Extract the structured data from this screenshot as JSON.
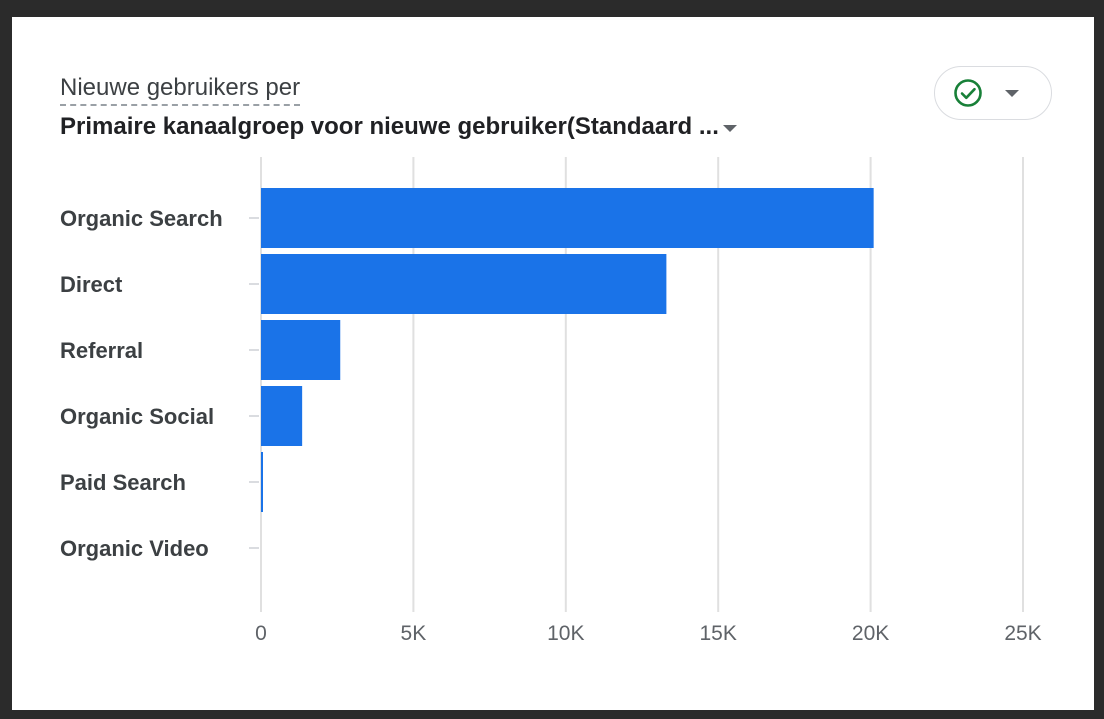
{
  "header": {
    "title_line1": "Nieuwe gebruikers per",
    "title_line2": "Primaire kanaalgroep voor nieuwe gebruiker(Standaard ..."
  },
  "status_button": {
    "icon": "check-circle-icon",
    "dropdown_icon": "chevron-down-icon",
    "icon_color": "#188038"
  },
  "chart_data": {
    "type": "bar",
    "orientation": "horizontal",
    "categories": [
      "Organic Search",
      "Direct",
      "Referral",
      "Organic Social",
      "Paid Search",
      "Organic Video"
    ],
    "values": [
      20100,
      13300,
      2600,
      1350,
      60,
      0
    ],
    "xlim": [
      0,
      25000
    ],
    "xticks": [
      0,
      5000,
      10000,
      15000,
      20000,
      25000
    ],
    "xtick_labels": [
      "0",
      "5K",
      "10K",
      "15K",
      "20K",
      "25K"
    ],
    "grid": true,
    "bar_color": "#1a73e8",
    "title": "",
    "xlabel": "",
    "ylabel": ""
  }
}
